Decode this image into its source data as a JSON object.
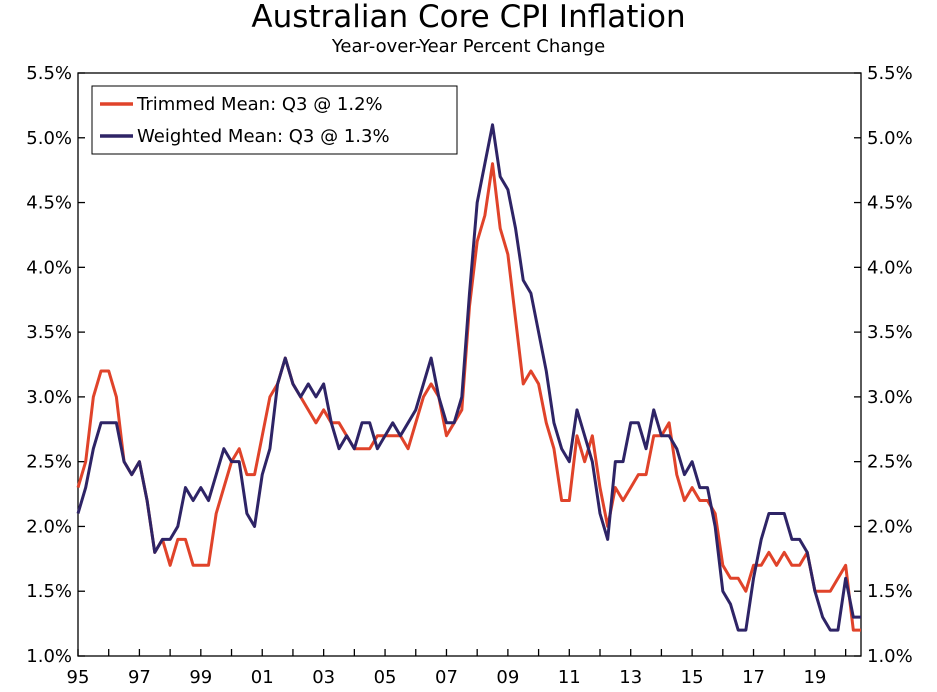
{
  "chart_data": {
    "type": "line",
    "title": "Australian Core CPI Inflation",
    "subtitle": "Year-over-Year Percent Change",
    "xlabel": "",
    "ylabel": "",
    "frequency": "quarterly",
    "start": "1995-Q1",
    "end": "2020-Q3",
    "x_tick_labels": [
      "95",
      "97",
      "99",
      "01",
      "03",
      "05",
      "07",
      "09",
      "11",
      "13",
      "15",
      "17",
      "19"
    ],
    "y_tick_labels": [
      "1.0%",
      "1.5%",
      "2.0%",
      "2.5%",
      "3.0%",
      "3.5%",
      "4.0%",
      "4.5%",
      "5.0%",
      "5.5%"
    ],
    "ylim": [
      1.0,
      5.5
    ],
    "ystep": 0.5,
    "grid": false,
    "legend_position": "top-left",
    "series": [
      {
        "name": "Trimmed Mean: Q3 @ 1.2%",
        "color": "#e0432a",
        "values": [
          2.3,
          2.5,
          3.0,
          3.2,
          3.2,
          3.0,
          2.5,
          2.4,
          2.5,
          2.2,
          1.8,
          1.9,
          1.7,
          1.9,
          1.9,
          1.7,
          1.7,
          1.7,
          2.1,
          2.3,
          2.5,
          2.6,
          2.4,
          2.4,
          2.7,
          3.0,
          3.1,
          3.3,
          3.1,
          3.0,
          2.9,
          2.8,
          2.9,
          2.8,
          2.8,
          2.7,
          2.6,
          2.6,
          2.6,
          2.7,
          2.7,
          2.7,
          2.7,
          2.6,
          2.8,
          3.0,
          3.1,
          3.0,
          2.7,
          2.8,
          2.9,
          3.7,
          4.2,
          4.4,
          4.8,
          4.3,
          4.1,
          3.6,
          3.1,
          3.2,
          3.1,
          2.8,
          2.6,
          2.2,
          2.2,
          2.7,
          2.5,
          2.7,
          2.3,
          2.0,
          2.3,
          2.2,
          2.3,
          2.4,
          2.4,
          2.7,
          2.7,
          2.8,
          2.4,
          2.2,
          2.3,
          2.2,
          2.2,
          2.1,
          1.7,
          1.6,
          1.6,
          1.5,
          1.7,
          1.7,
          1.8,
          1.7,
          1.8,
          1.7,
          1.7,
          1.8,
          1.5,
          1.5,
          1.5,
          1.6,
          1.7,
          1.2,
          1.2
        ]
      },
      {
        "name": "Weighted Mean: Q3 @ 1.3%",
        "color": "#2e2466",
        "values": [
          2.1,
          2.3,
          2.6,
          2.8,
          2.8,
          2.8,
          2.5,
          2.4,
          2.5,
          2.2,
          1.8,
          1.9,
          1.9,
          2.0,
          2.3,
          2.2,
          2.3,
          2.2,
          2.4,
          2.6,
          2.5,
          2.5,
          2.1,
          2.0,
          2.4,
          2.6,
          3.1,
          3.3,
          3.1,
          3.0,
          3.1,
          3.0,
          3.1,
          2.8,
          2.6,
          2.7,
          2.6,
          2.8,
          2.8,
          2.6,
          2.7,
          2.8,
          2.7,
          2.8,
          2.9,
          3.1,
          3.3,
          3.0,
          2.8,
          2.8,
          3.0,
          3.8,
          4.5,
          4.8,
          5.1,
          4.7,
          4.6,
          4.3,
          3.9,
          3.8,
          3.5,
          3.2,
          2.8,
          2.6,
          2.5,
          2.9,
          2.7,
          2.5,
          2.1,
          1.9,
          2.5,
          2.5,
          2.8,
          2.8,
          2.6,
          2.9,
          2.7,
          2.7,
          2.6,
          2.4,
          2.5,
          2.3,
          2.3,
          2.0,
          1.5,
          1.4,
          1.2,
          1.2,
          1.6,
          1.9,
          2.1,
          2.1,
          2.1,
          1.9,
          1.9,
          1.8,
          1.5,
          1.3,
          1.2,
          1.2,
          1.6,
          1.3,
          1.3
        ]
      }
    ]
  }
}
